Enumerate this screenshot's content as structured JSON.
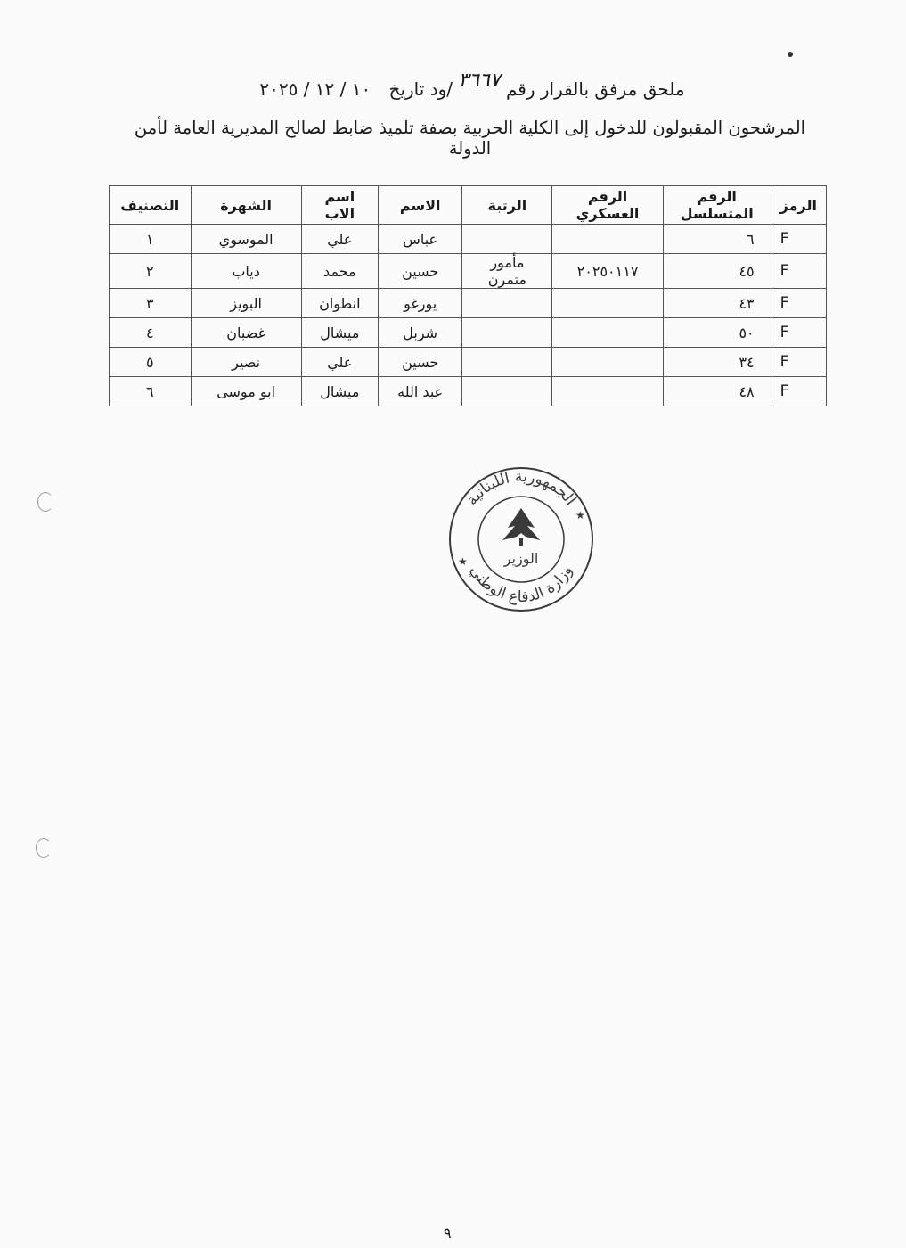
{
  "header": {
    "line1_prefix": "ملحق مرفق بالقرار رقم",
    "decision_number": "٣٦٦٧",
    "line1_suffix": "/ود   تاريخ",
    "date": "١٠ / ١٢ / ٢٠٢٥",
    "line2": "المرشحون المقبولون للدخول إلى الكلية الحربية بصفة تلميذ ضابط لصالح المديرية العامة لأمن الدولة"
  },
  "table": {
    "columns": [
      "الرمز",
      "الرقم المتسلسل",
      "الرقم العسكري",
      "الرتبة",
      "الاسم",
      "اسم الاب",
      "الشهرة",
      "التصنيف"
    ],
    "rows": [
      {
        "code": "F",
        "serial": "٦",
        "military_no": "",
        "rank": "",
        "name": "عباس",
        "father": "علي",
        "surname": "الموسوي",
        "classification": "١"
      },
      {
        "code": "F",
        "serial": "٤٥",
        "military_no": "٢٠٢٥٠١١٧",
        "rank": "مأمور متمرن",
        "name": "حسين",
        "father": "محمد",
        "surname": "دياب",
        "classification": "٢"
      },
      {
        "code": "F",
        "serial": "٤٣",
        "military_no": "",
        "rank": "",
        "name": "يورغو",
        "father": "انطوان",
        "surname": "البويز",
        "classification": "٣"
      },
      {
        "code": "F",
        "serial": "٥٠",
        "military_no": "",
        "rank": "",
        "name": "شربل",
        "father": "ميشال",
        "surname": "غضبان",
        "classification": "٤"
      },
      {
        "code": "F",
        "serial": "٣٤",
        "military_no": "",
        "rank": "",
        "name": "حسين",
        "father": "علي",
        "surname": "نصير",
        "classification": "٥"
      },
      {
        "code": "F",
        "serial": "٤٨",
        "military_no": "",
        "rank": "",
        "name": "عبد الله",
        "father": "ميشال",
        "surname": "ابو موسى",
        "classification": "٦"
      }
    ]
  },
  "stamp": {
    "top_text": "الجمهورية اللبنانية",
    "bottom_text": "وزارة الدفاع الوطني",
    "center_text": "الوزير",
    "color": "#3a3a3a"
  },
  "footer": {
    "page_number": "٩"
  }
}
